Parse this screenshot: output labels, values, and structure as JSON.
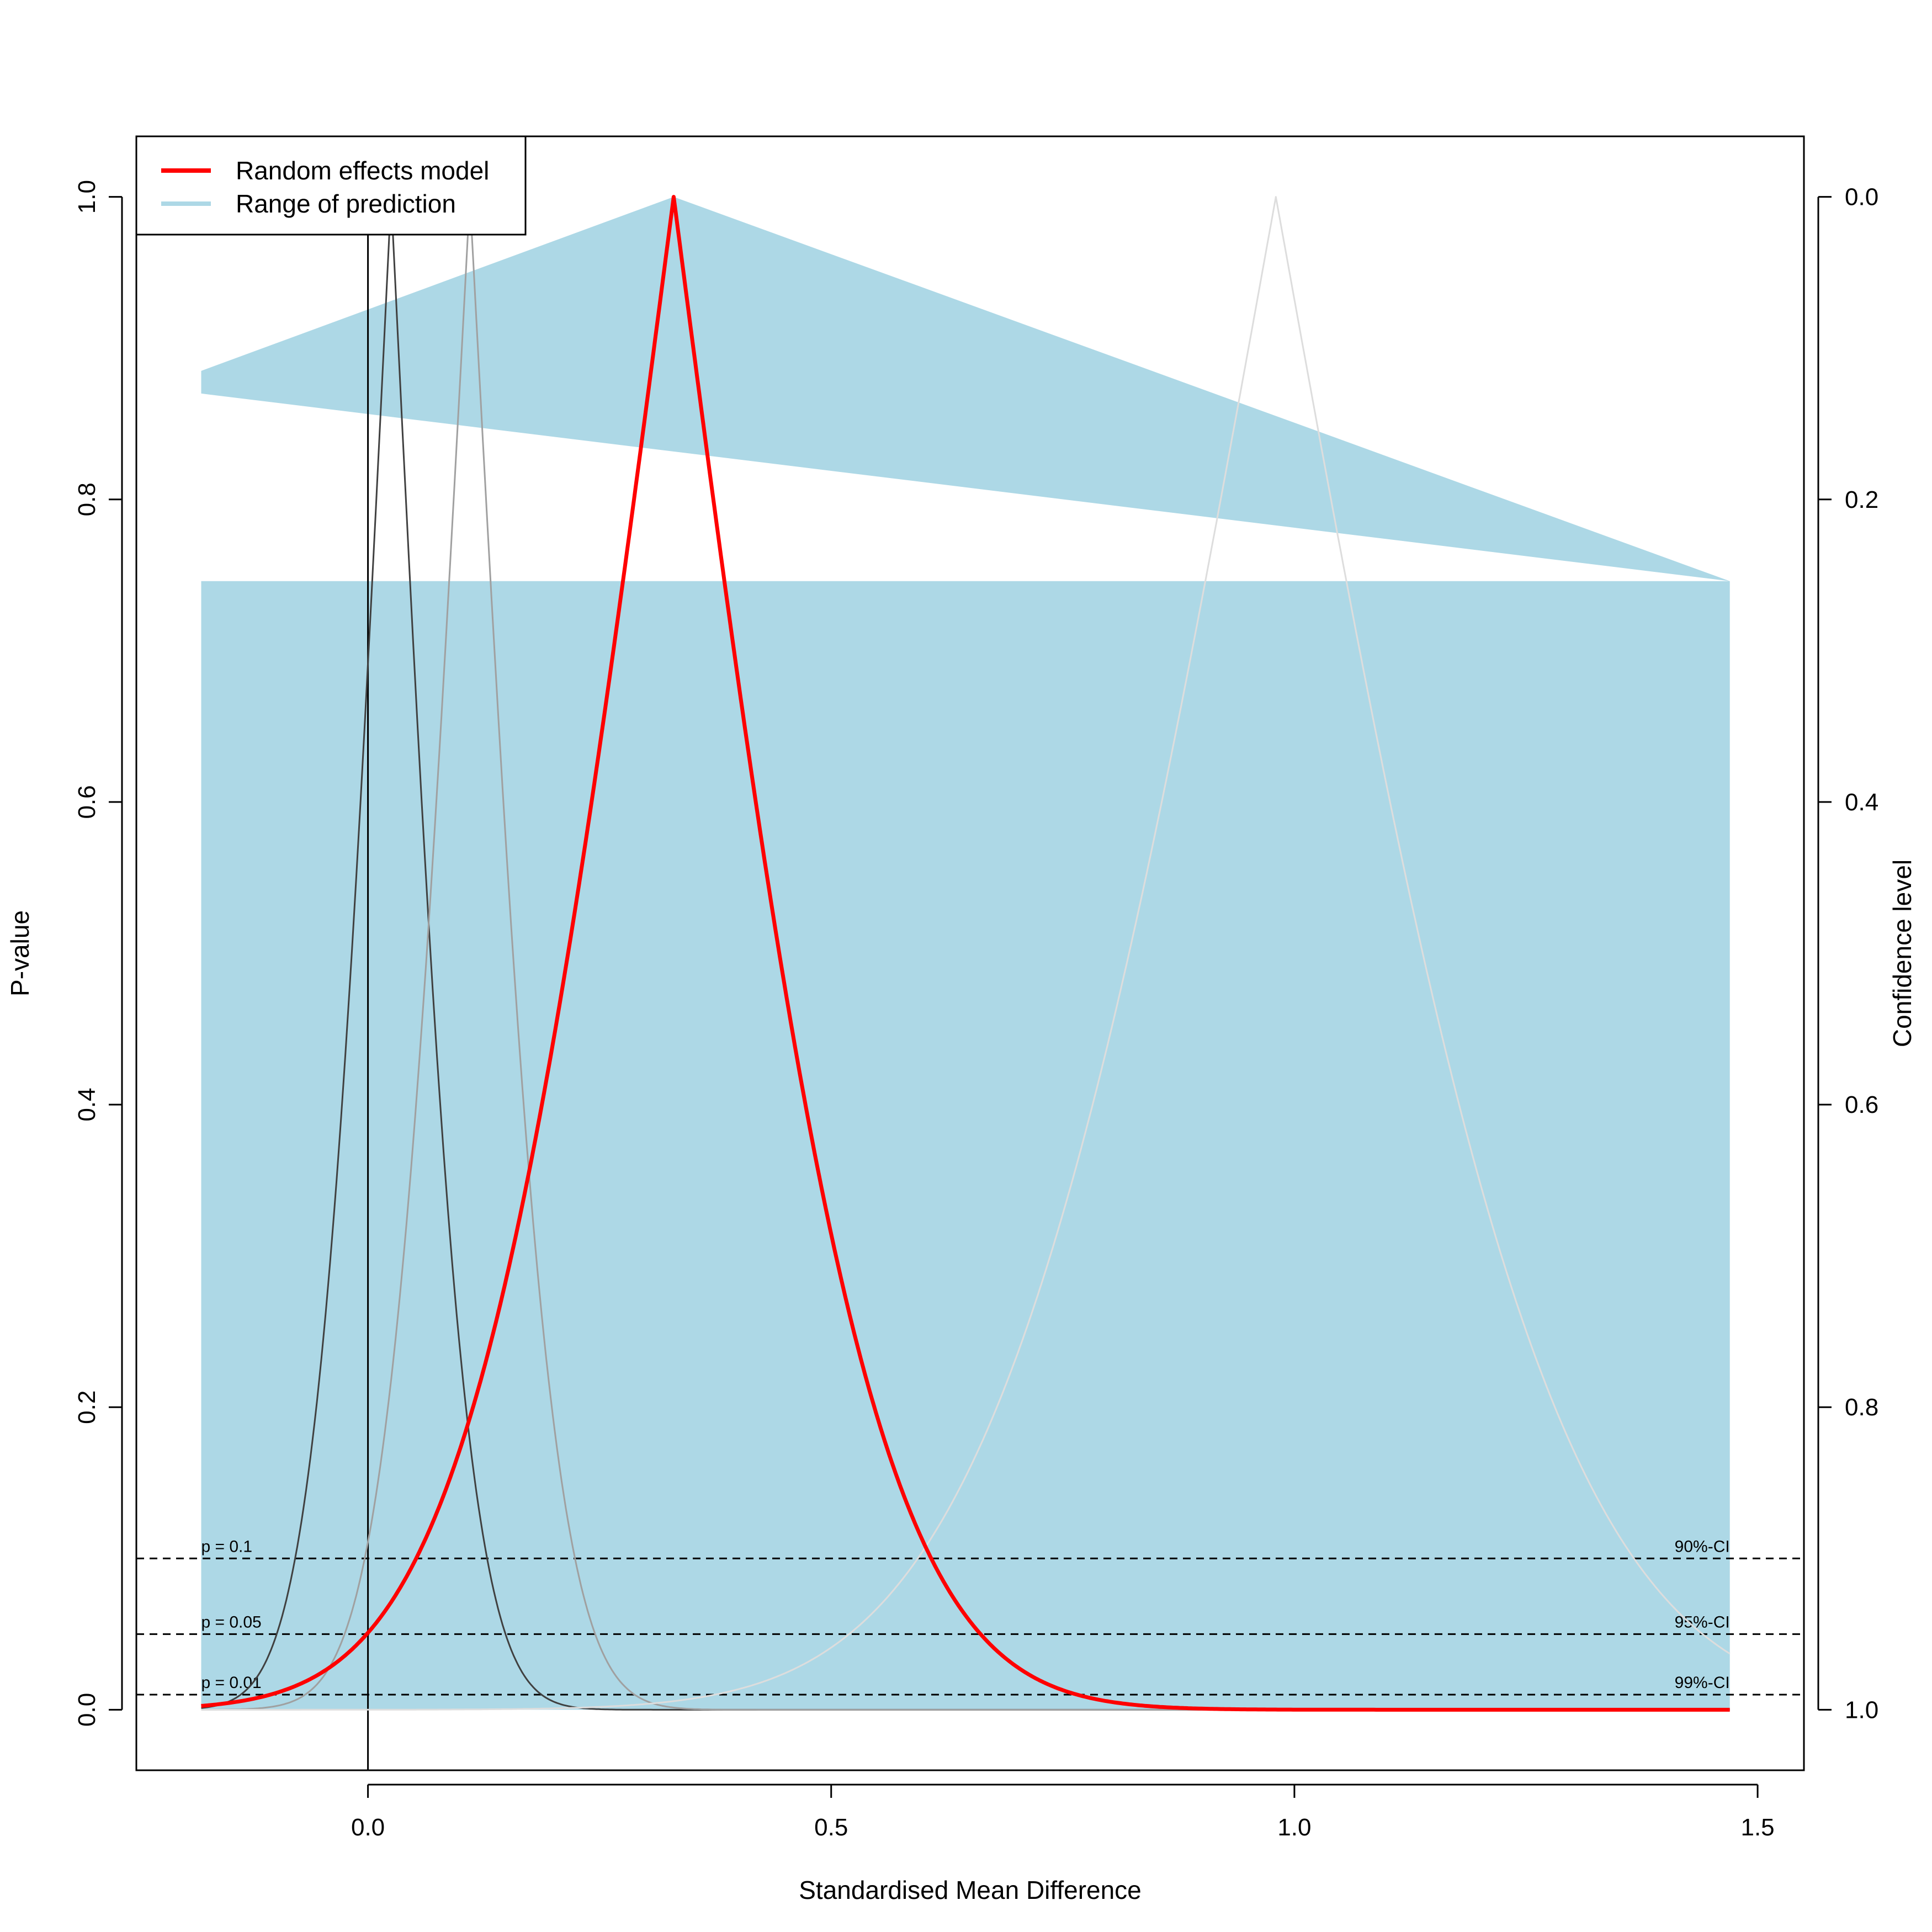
{
  "chart_data": {
    "type": "line",
    "title": "",
    "xlabel": "Standardised Mean Difference",
    "ylabel": "P-value",
    "ylabel_right": "Confidence level",
    "xlim": [
      -0.25,
      1.55
    ],
    "ylim": [
      -0.04,
      1.04
    ],
    "x_ticks": [
      {
        "value": 0.0,
        "label": "0.0"
      },
      {
        "value": 0.5,
        "label": "0.5"
      },
      {
        "value": 1.0,
        "label": "1.0"
      },
      {
        "value": 1.5,
        "label": "1.5"
      }
    ],
    "y_ticks": [
      {
        "value": 0.0,
        "label": "0.0"
      },
      {
        "value": 0.2,
        "label": "0.2"
      },
      {
        "value": 0.4,
        "label": "0.4"
      },
      {
        "value": 0.6,
        "label": "0.6"
      },
      {
        "value": 0.8,
        "label": "0.8"
      },
      {
        "value": 1.0,
        "label": "1.0"
      }
    ],
    "y_right_ticks": [
      {
        "value": 1.0,
        "label": "0.0"
      },
      {
        "value": 0.8,
        "label": "0.2"
      },
      {
        "value": 0.6,
        "label": "0.4"
      },
      {
        "value": 0.4,
        "label": "0.6"
      },
      {
        "value": 0.2,
        "label": "0.8"
      },
      {
        "value": 0.0,
        "label": "1.0"
      }
    ],
    "legend": {
      "position": "top-left",
      "entries": [
        {
          "label": "Random effects model",
          "color": "#ff0000"
        },
        {
          "label": "Range of prediction",
          "color": "#add8e6"
        }
      ]
    },
    "reference_lines": [
      {
        "p": 0.1,
        "left_label": "p = 0.1",
        "right_label": "90%-CI"
      },
      {
        "p": 0.05,
        "left_label": "p = 0.05",
        "right_label": "95%-CI"
      },
      {
        "p": 0.01,
        "left_label": "p = 0.01",
        "right_label": "99%-CI"
      }
    ],
    "vertical_reference_x": 0.0,
    "prediction_range": {
      "color": "#add8e6",
      "x_range": [
        -0.18,
        1.47
      ],
      "band_top_p": 0.746,
      "triangle": [
        {
          "x": -0.18,
          "y": 0.885
        },
        {
          "x": 0.33,
          "y": 1.0
        },
        {
          "x": 1.47,
          "y": 0.746
        },
        {
          "x": -0.18,
          "y": 0.87
        }
      ]
    },
    "x_range": [
      -0.18,
      1.47
    ],
    "series": [
      {
        "name": "Random effects model",
        "estimate": 0.33,
        "se": 0.169,
        "color": "#ff0000",
        "role": "pooled"
      },
      {
        "estimate": 0.025,
        "se": 0.063,
        "color": "#404040",
        "role": "study"
      },
      {
        "estimate": 0.11,
        "se": 0.069,
        "color": "#a0a0a0",
        "role": "study"
      },
      {
        "estimate": 0.98,
        "se": 0.235,
        "color": "#dddddd",
        "role": "study"
      }
    ]
  }
}
